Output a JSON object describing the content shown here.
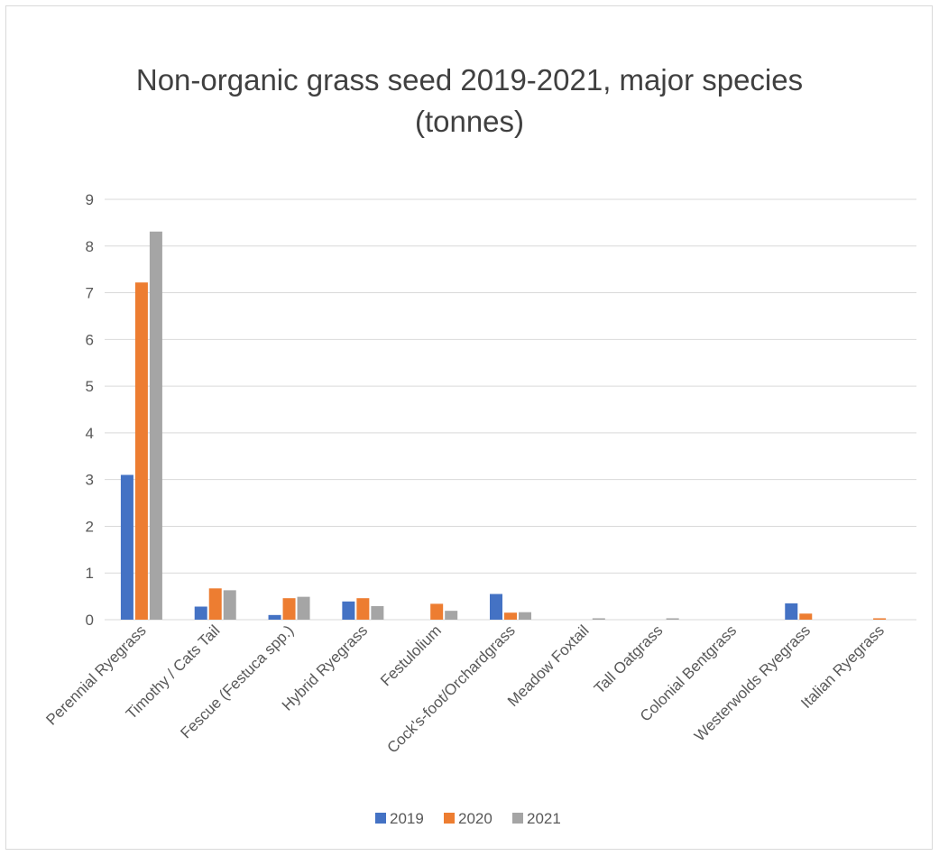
{
  "chart_data": {
    "type": "bar",
    "title": "Non-organic grass seed 2019-2021, major species (tonnes)",
    "title_lines": [
      "Non-organic grass seed 2019-2021, major species",
      "(tonnes)"
    ],
    "categories": [
      "Perennial Ryegrass",
      "Timothy / Cats Tail",
      "Fescue (Festuca spp.)",
      "Hybrid Ryegrass",
      "Festulolium",
      "Cock's-foot/Orchardgrass",
      "Meadow Foxtail",
      "Tall Oatgrass",
      "Colonial Bentgrass",
      "Westerwolds Ryegrass",
      "Italian Ryegrass"
    ],
    "series": [
      {
        "name": "2019",
        "color": "#4472c4",
        "values": [
          3.1,
          0.28,
          0.1,
          0.39,
          0,
          0.55,
          0,
          0,
          0,
          0.35,
          0
        ]
      },
      {
        "name": "2020",
        "color": "#ed7d31",
        "values": [
          7.22,
          0.67,
          0.46,
          0.46,
          0.34,
          0.15,
          0,
          0,
          0,
          0.13,
          0.03
        ]
      },
      {
        "name": "2021",
        "color": "#a5a5a5",
        "values": [
          8.31,
          0.63,
          0.49,
          0.29,
          0.19,
          0.16,
          0.03,
          0.03,
          0,
          0,
          0
        ]
      }
    ],
    "yticks": [
      "0",
      "1",
      "2",
      "3",
      "4",
      "5",
      "6",
      "7",
      "8",
      "9"
    ],
    "ylim": [
      0,
      9
    ],
    "grid": true,
    "legend": "bottom"
  }
}
